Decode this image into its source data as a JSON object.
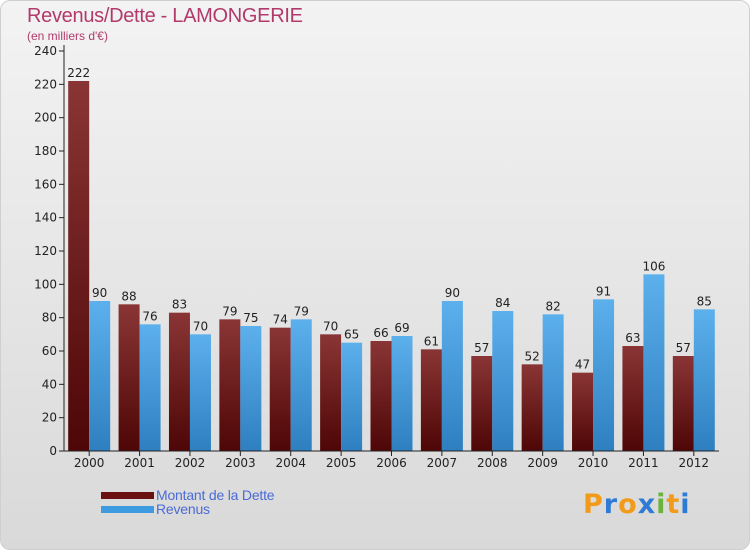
{
  "title": "Revenus/Dette - LAMONGERIE",
  "subtitle": "(en milliers d'€)",
  "colors": {
    "dette": "#7a1f1f",
    "revenus": "#4aa3e0",
    "title": "#b23a6b",
    "legend_text": "#4b6bd6"
  },
  "legend": [
    {
      "label": "Montant de la Dette",
      "color": "#6b1010"
    },
    {
      "label": "Revenus",
      "color": "#3f9be0"
    }
  ],
  "logo": {
    "text": "Proxiti",
    "letters": [
      "P",
      "r",
      "o",
      "x",
      "i",
      "t",
      "i"
    ],
    "colors": [
      "#f29a1a",
      "#2e7bd6",
      "#f29a1a",
      "#2e7bd6",
      "#6ab43d",
      "#f29a1a",
      "#2e7bd6"
    ]
  },
  "chart_data": {
    "type": "bar",
    "title": "Revenus/Dette - LAMONGERIE",
    "subtitle": "(en milliers d'€)",
    "categories": [
      "2000",
      "2001",
      "2002",
      "2003",
      "2004",
      "2005",
      "2006",
      "2007",
      "2008",
      "2009",
      "2010",
      "2011",
      "2012"
    ],
    "series": [
      {
        "name": "Montant de la Dette",
        "values": [
          222,
          88,
          83,
          79,
          74,
          70,
          66,
          61,
          57,
          52,
          47,
          63,
          57
        ]
      },
      {
        "name": "Revenus",
        "values": [
          90,
          76,
          70,
          75,
          79,
          65,
          69,
          90,
          84,
          82,
          91,
          106,
          85
        ]
      }
    ],
    "ylim": [
      0,
      240
    ],
    "yticks": [
      0,
      20,
      40,
      60,
      80,
      100,
      120,
      140,
      160,
      180,
      200,
      220,
      240
    ],
    "grid": false,
    "legend_position": "bottom-left"
  }
}
